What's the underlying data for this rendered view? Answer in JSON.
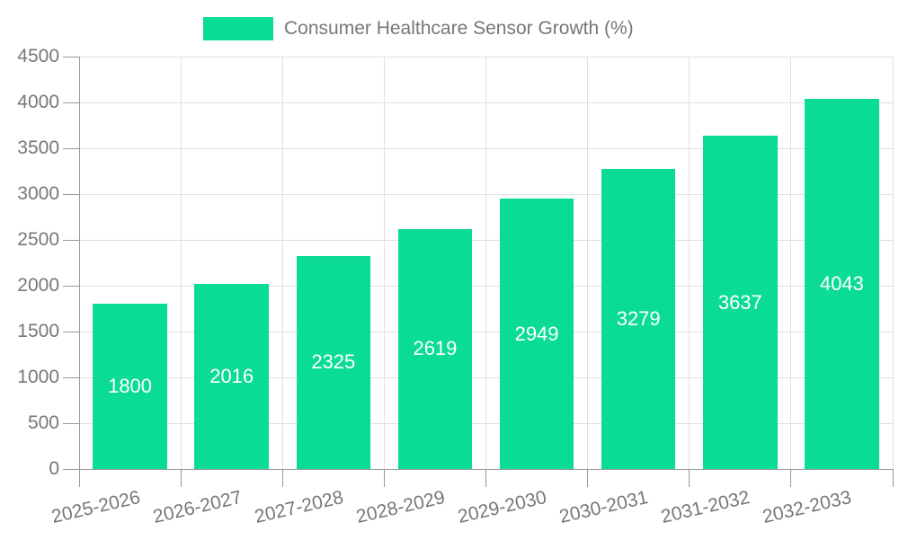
{
  "chart_data": {
    "type": "bar",
    "legend_label": "Consumer Healthcare Sensor Growth (%)",
    "categories": [
      "2025-2026",
      "2026-2027",
      "2027-2028",
      "2028-2029",
      "2029-2030",
      "2030-2031",
      "2031-2032",
      "2032-2033"
    ],
    "values": [
      1800,
      2016,
      2325,
      2619,
      2949,
      3279,
      3637,
      4043
    ],
    "yticks": [
      0,
      500,
      1000,
      1500,
      2000,
      2500,
      3000,
      3500,
      4000,
      4500
    ],
    "ylim": [
      0,
      4500
    ],
    "ytick_step": 500,
    "grid": true,
    "legend_position": "top-center",
    "value_labels_inside_bars": true,
    "colors": {
      "bar": "#0bdc93",
      "value_label": "#ffffff",
      "axis_text": "#777777",
      "axis_line": "#9a9a9a",
      "grid": "#e0e0e0",
      "background": "#ffffff"
    }
  }
}
